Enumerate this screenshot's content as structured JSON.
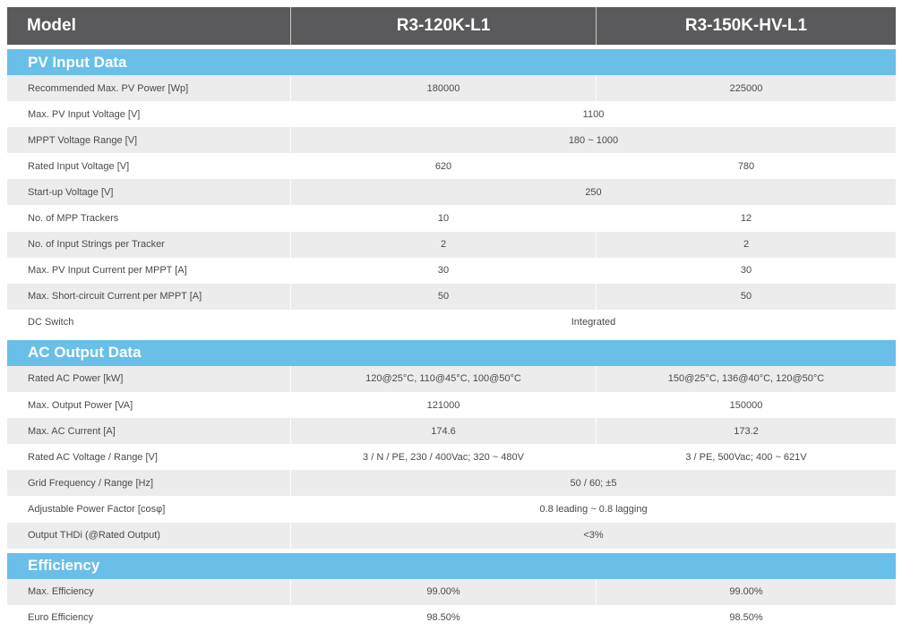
{
  "header": {
    "model_label": "Model",
    "col1": "R3-120K-L1",
    "col2": "R3-150K-HV-L1"
  },
  "pv_section": {
    "title": "PV Input Data",
    "rows": [
      {
        "label": "Recommended Max. PV Power [Wp]",
        "v1": "180000",
        "v2": "225000"
      },
      {
        "label": "Max. PV Input Voltage [V]",
        "span": "1100"
      },
      {
        "label": "MPPT Voltage Range [V]",
        "span": "180 ~ 1000"
      },
      {
        "label": "Rated Input Voltage [V]",
        "v1": "620",
        "v2": "780"
      },
      {
        "label": "Start-up Voltage [V]",
        "span": "250"
      },
      {
        "label": "No. of MPP Trackers",
        "v1": "10",
        "v2": "12"
      },
      {
        "label": "No. of Input Strings per Tracker",
        "v1": "2",
        "v2": "2"
      },
      {
        "label": "Max. PV Input Current per MPPT [A]",
        "v1": "30",
        "v2": "30"
      },
      {
        "label": "Max. Short-circuit Current per MPPT [A]",
        "v1": "50",
        "v2": "50"
      },
      {
        "label": "DC Switch",
        "span": "Integrated"
      }
    ]
  },
  "ac_section": {
    "title": "AC Output Data",
    "rows": [
      {
        "label": "Rated AC Power [kW]",
        "v1": "120@25°C, 110@45°C, 100@50°C",
        "v2": "150@25°C, 136@40°C, 120@50°C"
      },
      {
        "label": "Max. Output Power [VA]",
        "v1": "121000",
        "v2": "150000"
      },
      {
        "label": "Max. AC Current [A]",
        "v1": "174.6",
        "v2": "173.2"
      },
      {
        "label": "Rated AC Voltage / Range [V]",
        "v1": "3 / N / PE, 230 / 400Vac; 320 ~ 480V",
        "v2": "3 / PE, 500Vac; 400 ~ 621V"
      },
      {
        "label": "Grid Frequency / Range [Hz]",
        "span": "50 / 60; ±5"
      },
      {
        "label": "Adjustable Power Factor [cosφ]",
        "span": "0.8 leading ~ 0.8 lagging"
      },
      {
        "label": "Output THDi (@Rated Output)",
        "span": "<3%"
      }
    ]
  },
  "eff_section": {
    "title": "Efficiency",
    "rows": [
      {
        "label": "Max. Efficiency",
        "v1": "99.00%",
        "v2": "99.00%"
      },
      {
        "label": "Euro Efficiency",
        "v1": "98.50%",
        "v2": "98.50%"
      }
    ]
  }
}
